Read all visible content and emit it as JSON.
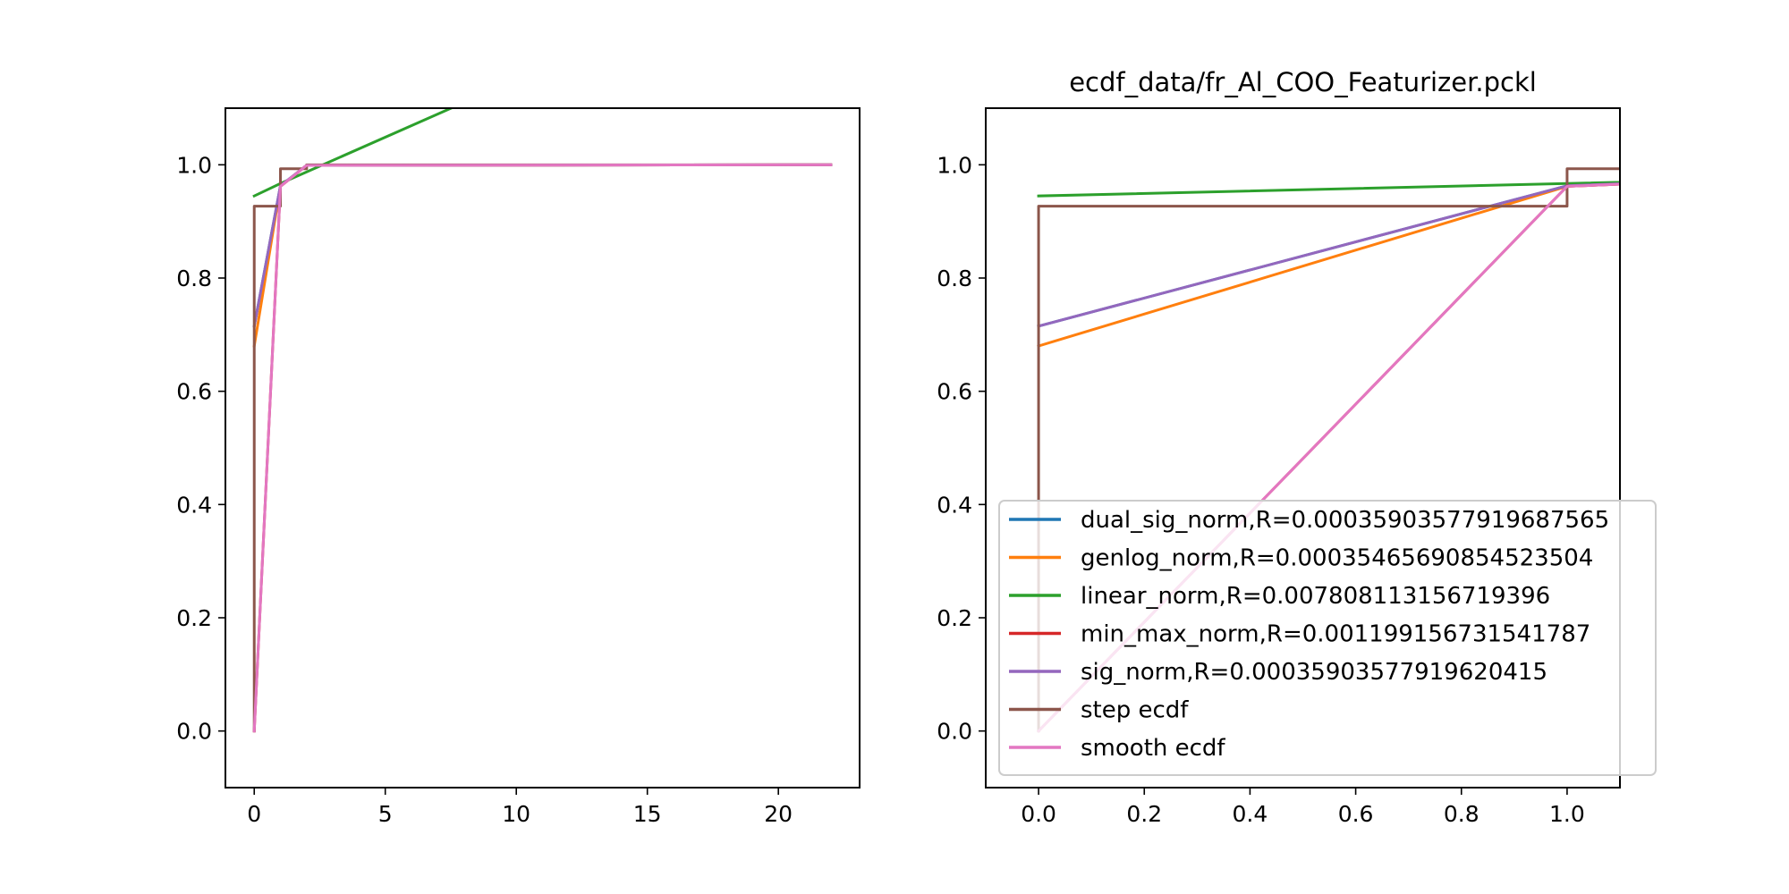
{
  "chart_data": [
    {
      "type": "line",
      "title": "",
      "xlabel": "",
      "ylabel": "",
      "xlim": [
        -1.1,
        23.1
      ],
      "ylim": [
        -0.1,
        1.1
      ],
      "xticks": [
        0,
        5,
        10,
        15,
        20
      ],
      "yticks": [
        0.0,
        0.2,
        0.4,
        0.6,
        0.8,
        1.0
      ],
      "xtick_labels": [
        "0",
        "5",
        "10",
        "15",
        "20"
      ],
      "ytick_labels": [
        "0.0",
        "0.2",
        "0.4",
        "0.6",
        "0.8",
        "1.0"
      ],
      "grid": false,
      "series": [
        {
          "name": "dual_sig_norm,R=0.0003590357791968756​5",
          "color": "#1f77b4",
          "drawstyle": "default",
          "x": [
            0,
            1,
            2,
            22
          ],
          "y": [
            0.715,
            0.963,
            0.999,
            1.0
          ]
        },
        {
          "name": "genlog_norm,R=0.00035465690854523504",
          "color": "#ff7f0e",
          "drawstyle": "default",
          "x": [
            0,
            1,
            2,
            22
          ],
          "y": [
            0.68,
            0.962,
            0.999,
            1.0
          ]
        },
        {
          "name": "linear_norm,R=0.007808113156719396",
          "color": "#2ca02c",
          "drawstyle": "default",
          "x": [
            0,
            1,
            8
          ],
          "y": [
            0.945,
            0.967,
            1.11
          ]
        },
        {
          "name": "min_max_norm,R=0.001199156731541787",
          "color": "#d62728",
          "drawstyle": "default",
          "x": [
            0,
            1,
            2,
            22
          ],
          "y": [
            0.0,
            0.962,
            0.999,
            1.0
          ]
        },
        {
          "name": "sig_norm,R=0.00035903577919620415",
          "color": "#9467bd",
          "drawstyle": "default",
          "x": [
            0,
            1,
            2,
            22
          ],
          "y": [
            0.715,
            0.963,
            0.999,
            1.0
          ]
        },
        {
          "name": "step ecdf",
          "color": "#8c564b",
          "drawstyle": "steps-post",
          "x": [
            0,
            0,
            1,
            2,
            22
          ],
          "y": [
            0.0,
            0.927,
            0.993,
            1.0,
            1.0
          ]
        },
        {
          "name": "smooth ecdf",
          "color": "#e377c2",
          "drawstyle": "default",
          "x": [
            0,
            1,
            2,
            22
          ],
          "y": [
            0.0,
            0.962,
            0.999,
            1.0
          ]
        }
      ]
    },
    {
      "type": "line",
      "title": "ecdf_data/fr_Al_COO_Featurizer.pckl",
      "xlabel": "",
      "ylabel": "",
      "xlim": [
        -0.1,
        1.1
      ],
      "ylim": [
        -0.1,
        1.1
      ],
      "xticks": [
        0.0,
        0.2,
        0.4,
        0.6,
        0.8,
        1.0
      ],
      "yticks": [
        0.0,
        0.2,
        0.4,
        0.6,
        0.8,
        1.0
      ],
      "xtick_labels": [
        "0.0",
        "0.2",
        "0.4",
        "0.6",
        "0.8",
        "1.0"
      ],
      "ytick_labels": [
        "0.0",
        "0.2",
        "0.4",
        "0.6",
        "0.8",
        "1.0"
      ],
      "grid": false,
      "legend_position": "lower-right",
      "series": [
        {
          "name": "dual_sig_norm,R=0.0003590357791968756​5",
          "color": "#1f77b4",
          "drawstyle": "default",
          "x": [
            0,
            1,
            2
          ],
          "y": [
            0.715,
            0.963,
            0.999
          ]
        },
        {
          "name": "genlog_norm,R=0.00035465690854523504",
          "color": "#ff7f0e",
          "drawstyle": "default",
          "x": [
            0,
            1,
            2
          ],
          "y": [
            0.68,
            0.962,
            0.999
          ]
        },
        {
          "name": "linear_norm,R=0.007808113156719396",
          "color": "#2ca02c",
          "drawstyle": "default",
          "x": [
            0,
            1,
            2
          ],
          "y": [
            0.945,
            0.967,
            0.989
          ]
        },
        {
          "name": "min_max_norm,R=0.001199156731541787",
          "color": "#d62728",
          "drawstyle": "default",
          "x": [
            0,
            1,
            2
          ],
          "y": [
            0.0,
            0.962,
            0.999
          ]
        },
        {
          "name": "sig_norm,R=0.00035903577919620415",
          "color": "#9467bd",
          "drawstyle": "default",
          "x": [
            0,
            1,
            2
          ],
          "y": [
            0.715,
            0.963,
            0.999
          ]
        },
        {
          "name": "step ecdf",
          "color": "#8c564b",
          "drawstyle": "steps-post",
          "x": [
            0,
            0,
            1,
            2
          ],
          "y": [
            0.0,
            0.927,
            0.993,
            1.0
          ]
        },
        {
          "name": "smooth ecdf",
          "color": "#e377c2",
          "drawstyle": "default",
          "x": [
            0,
            1,
            2
          ],
          "y": [
            0.0,
            0.962,
            0.999
          ]
        }
      ]
    }
  ],
  "legend": {
    "entries": [
      {
        "label": "dual_sig_norm,R=0.00035903577919687565",
        "color": "#1f77b4"
      },
      {
        "label": "genlog_norm,R=0.00035465690854523504",
        "color": "#ff7f0e"
      },
      {
        "label": "linear_norm,R=0.007808113156719396",
        "color": "#2ca02c"
      },
      {
        "label": "min_max_norm,R=0.001199156731541787",
        "color": "#d62728"
      },
      {
        "label": "sig_norm,R=0.00035903577919620415",
        "color": "#9467bd"
      },
      {
        "label": "step ecdf",
        "color": "#8c564b"
      },
      {
        "label": "smooth ecdf",
        "color": "#e377c2"
      }
    ]
  }
}
